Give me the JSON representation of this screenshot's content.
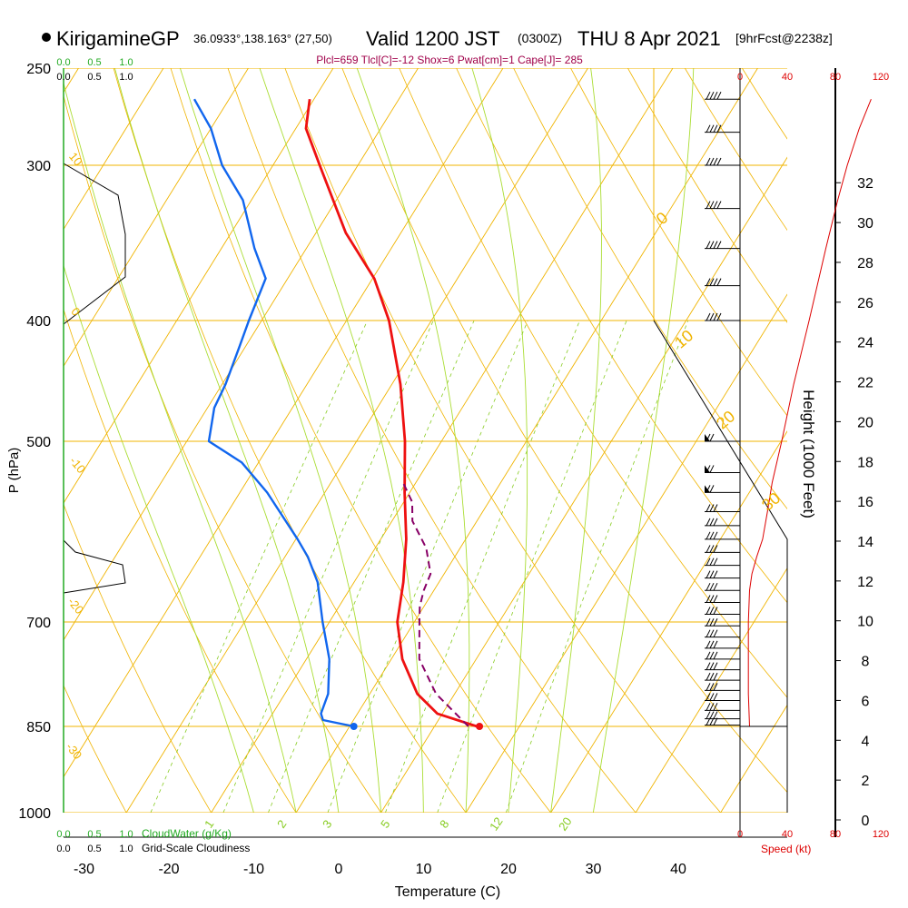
{
  "header": {
    "station": "KirigamineGP",
    "coords": "36.0933°,138.163° (27,50)",
    "valid_label": "Valid 1200 JST",
    "utc": "(0300Z)",
    "date": "THU 8 Apr 2021",
    "forecast": "[9hrFcst@2238z]"
  },
  "indices_line": "Plcl=659 Tlcl[C]=-12 Shox=6 Pwat[cm]=1 Cape[J]= 285",
  "colors": {
    "isotherm": "#f0b400",
    "dry_adiabat": "#7fc41c",
    "moist_adiabat": "#aadd33",
    "mixing_ratio": "#88cc22",
    "temperature": "#ee1111",
    "dewpoint": "#1166ee",
    "parcel": "#880066",
    "cloud": "#22aa22",
    "speed": "#dd0000"
  },
  "chart_data": {
    "type": "skew-t",
    "xlabel": "Temperature (C)",
    "ylabel": "P (hPa)",
    "right_label": "Height (1000 Feet)",
    "x_ticks": [
      -30,
      -20,
      -10,
      0,
      10,
      20,
      30,
      40
    ],
    "p_ticks": [
      250,
      300,
      400,
      500,
      700,
      850,
      1000
    ],
    "height_ticks_kft": [
      0,
      2,
      4,
      6,
      8,
      10,
      12,
      14,
      16,
      18,
      20,
      22,
      24,
      26,
      28,
      30,
      32
    ],
    "isotherm_labels": [
      "0",
      "10",
      "20",
      "30"
    ],
    "dry_adiabat_labels": [
      "10",
      "0",
      "-10",
      "-20",
      "-30"
    ],
    "mixing_ratio_labels": [
      "1",
      "2",
      "3",
      "5",
      "8",
      "12",
      "20"
    ],
    "cloud_scale_top": {
      "cloudwater": [
        "0.0",
        "0.5",
        "1.0"
      ],
      "cloudiness": [
        "0.0",
        "0.5",
        "1.0"
      ]
    },
    "cloud_scale_bottom": {
      "cloudwater": [
        "0.0",
        "0.5",
        "1.0"
      ],
      "cloudwater_label": "CloudWater (g/Kg)",
      "cloudiness": [
        "0.0",
        "0.5",
        "1.0"
      ],
      "cloudiness_label": "Grid-Scale Cloudiness"
    },
    "speed_ticks": [
      "0",
      "40",
      "80",
      "120"
    ],
    "speed_label": "Speed (kt)",
    "temperature": [
      [
        850,
        15
      ],
      [
        830,
        9.4
      ],
      [
        800,
        5.6
      ],
      [
        750,
        1.3
      ],
      [
        700,
        -2
      ],
      [
        650,
        -4.2
      ],
      [
        600,
        -7
      ],
      [
        550,
        -10.6
      ],
      [
        500,
        -14.3
      ],
      [
        450,
        -19
      ],
      [
        400,
        -25
      ],
      [
        370,
        -29.8
      ],
      [
        340,
        -36.5
      ],
      [
        300,
        -44.5
      ],
      [
        280,
        -48.8
      ],
      [
        265,
        -50.5
      ]
    ],
    "dewpoint": [
      [
        850,
        0.5
      ],
      [
        840,
        -3.6
      ],
      [
        830,
        -4.3
      ],
      [
        800,
        -4.9
      ],
      [
        750,
        -7.3
      ],
      [
        700,
        -10.8
      ],
      [
        650,
        -14.3
      ],
      [
        620,
        -17.3
      ],
      [
        600,
        -19.8
      ],
      [
        550,
        -26.8
      ],
      [
        520,
        -32
      ],
      [
        500,
        -37.4
      ],
      [
        470,
        -39.2
      ],
      [
        450,
        -39.6
      ],
      [
        420,
        -40.7
      ],
      [
        400,
        -41.5
      ],
      [
        370,
        -42.6
      ],
      [
        350,
        -46.1
      ],
      [
        320,
        -51
      ],
      [
        300,
        -56
      ],
      [
        280,
        -60
      ],
      [
        265,
        -64.1
      ]
    ],
    "parcel": [
      [
        850,
        14
      ],
      [
        800,
        7.8
      ],
      [
        750,
        3.3
      ],
      [
        700,
        0.6
      ],
      [
        680,
        -0.5
      ],
      [
        660,
        -1.2
      ],
      [
        640,
        -1.6
      ],
      [
        610,
        -4
      ],
      [
        580,
        -7.6
      ],
      [
        560,
        -9
      ],
      [
        540,
        -11.5
      ]
    ],
    "surface_points": {
      "temperature_c": 15.3,
      "dewpoint_c": 0.5,
      "pressure_hpa": 850
    },
    "speed_profile_kt": [
      [
        850,
        8
      ],
      [
        800,
        7
      ],
      [
        750,
        7
      ],
      [
        700,
        7
      ],
      [
        660,
        8
      ],
      [
        640,
        10
      ],
      [
        620,
        14
      ],
      [
        600,
        19
      ],
      [
        570,
        23
      ],
      [
        540,
        27
      ],
      [
        500,
        35
      ],
      [
        450,
        45
      ],
      [
        400,
        58
      ],
      [
        350,
        72
      ],
      [
        320,
        82
      ],
      [
        300,
        90
      ],
      [
        280,
        100
      ],
      [
        265,
        110
      ]
    ],
    "wind_barb_pressures": [
      265,
      282,
      300,
      325,
      350,
      375,
      400,
      500,
      530,
      550,
      570,
      585,
      600,
      615,
      630,
      645,
      660,
      675,
      690,
      705,
      720,
      735,
      750,
      765,
      780,
      795,
      810,
      825,
      838,
      848
    ]
  }
}
